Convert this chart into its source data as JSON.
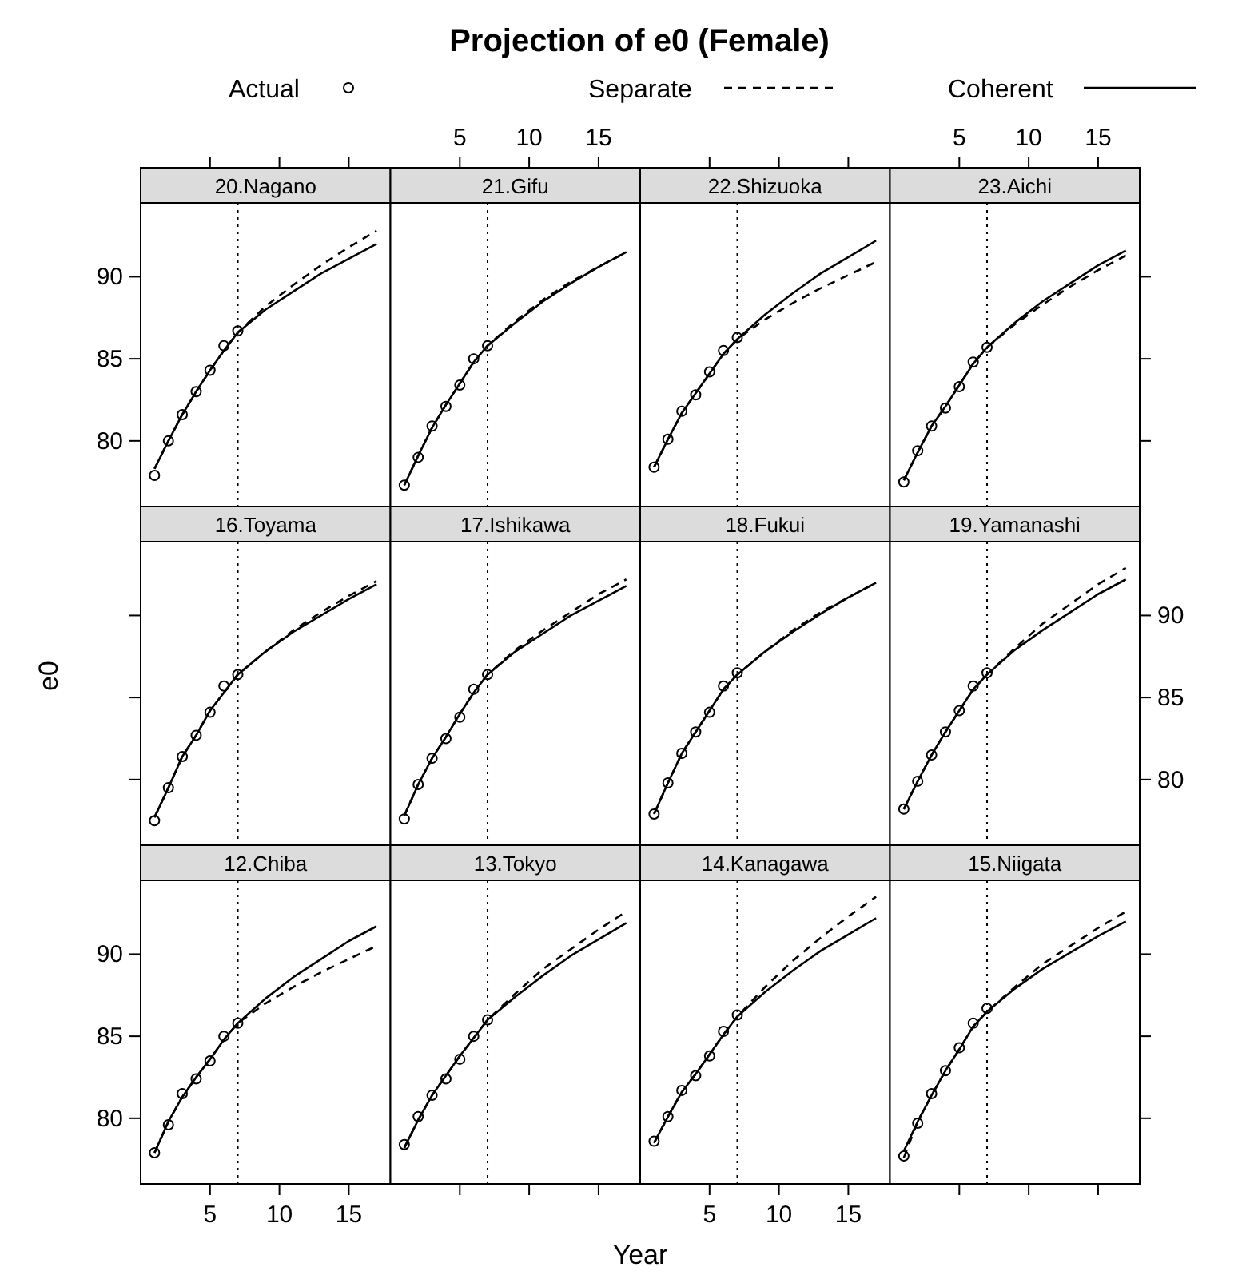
{
  "chart_data": [
    {
      "type": "line",
      "ylabel": "e0",
      "subtitle": "20.Nagano",
      "legend": "top",
      "xlim": [
        0,
        18
      ],
      "xticks": [
        5,
        10,
        15
      ],
      "ylim": [
        76,
        94.5
      ],
      "yticks": [
        80,
        85,
        90
      ],
      "tick_labels": "y",
      "ref_lines": [
        {
          "axis": "x",
          "value": 7,
          "line_style": "dotted",
          "color": "#000000"
        }
      ],
      "series": [
        {
          "name": "Actual",
          "type": "scatter",
          "marker": "circle",
          "color": "#000000",
          "x": [
            1,
            2,
            3,
            4,
            5,
            6,
            7
          ],
          "values": [
            77.9,
            80.0,
            81.6,
            83.0,
            84.3,
            85.8,
            86.7
          ]
        },
        {
          "name": "Separate",
          "type": "line",
          "line_style": "dashed",
          "color": "#000000",
          "x": [
            1,
            2,
            3,
            4,
            5,
            6,
            7,
            9,
            11,
            13,
            15,
            17
          ],
          "values": [
            78.3,
            80.0,
            81.6,
            83.0,
            84.3,
            85.5,
            86.6,
            88.2,
            89.5,
            90.7,
            91.8,
            92.8
          ]
        },
        {
          "name": "Coherent",
          "type": "line",
          "line_style": "solid",
          "color": "#000000",
          "x": [
            1,
            2,
            3,
            4,
            5,
            6,
            7,
            9,
            11,
            13,
            15,
            17
          ],
          "values": [
            78.3,
            80.0,
            81.6,
            83.0,
            84.3,
            85.5,
            86.6,
            88.0,
            89.1,
            90.2,
            91.1,
            92.0
          ]
        }
      ]
    },
    {
      "type": "line",
      "title": "Projection of e0 (Female)",
      "subtitle": "21.Gifu",
      "xlim": [
        0,
        18
      ],
      "xticks": [
        5,
        10,
        15
      ],
      "ylim": [
        76,
        94.5
      ],
      "tick_labels": "x",
      "ref_lines": [
        {
          "axis": "x",
          "value": 7,
          "line_style": "dotted",
          "color": "#000000"
        }
      ],
      "series": [
        {
          "type": "scatter",
          "marker": "circle",
          "color": "#000000",
          "x": [
            1,
            2,
            3,
            4,
            5,
            6,
            7
          ],
          "values": [
            77.3,
            79.0,
            80.9,
            82.1,
            83.4,
            85.0,
            85.8
          ]
        },
        {
          "type": "line",
          "line_style": "dashed",
          "color": "#000000",
          "x": [
            1,
            2,
            3,
            4,
            5,
            6,
            7,
            9,
            11,
            13,
            15,
            17
          ],
          "values": [
            77.3,
            79.1,
            80.8,
            82.2,
            83.5,
            84.8,
            85.8,
            87.3,
            88.6,
            89.7,
            90.6,
            91.5
          ]
        },
        {
          "type": "line",
          "line_style": "solid",
          "color": "#000000",
          "x": [
            1,
            2,
            3,
            4,
            5,
            6,
            7,
            9,
            11,
            13,
            15,
            17
          ],
          "values": [
            77.3,
            79.1,
            80.8,
            82.2,
            83.5,
            84.8,
            85.8,
            87.2,
            88.5,
            89.6,
            90.6,
            91.5
          ]
        }
      ]
    },
    {
      "type": "line",
      "subtitle": "22.Shizuoka",
      "xlim": [
        0,
        18
      ],
      "xticks": [
        5,
        10,
        15
      ],
      "ylim": [
        76,
        94.5
      ],
      "tick_labels": false,
      "ref_lines": [
        {
          "axis": "x",
          "value": 7,
          "line_style": "dotted",
          "color": "#000000"
        }
      ],
      "series": [
        {
          "type": "scatter",
          "marker": "circle",
          "color": "#000000",
          "x": [
            1,
            2,
            3,
            4,
            5,
            6,
            7
          ],
          "values": [
            78.4,
            80.1,
            81.8,
            82.8,
            84.2,
            85.5,
            86.3
          ]
        },
        {
          "type": "line",
          "line_style": "dashed",
          "color": "#000000",
          "x": [
            1,
            2,
            3,
            4,
            5,
            6,
            7,
            9,
            11,
            13,
            15,
            17
          ],
          "values": [
            78.4,
            80.1,
            81.7,
            82.9,
            84.1,
            85.3,
            86.2,
            87.4,
            88.4,
            89.3,
            90.1,
            90.9
          ]
        },
        {
          "type": "line",
          "line_style": "solid",
          "color": "#000000",
          "x": [
            1,
            2,
            3,
            4,
            5,
            6,
            7,
            9,
            11,
            13,
            15,
            17
          ],
          "values": [
            78.4,
            80.1,
            81.7,
            82.9,
            84.1,
            85.3,
            86.2,
            87.7,
            89.0,
            90.2,
            91.2,
            92.2
          ]
        }
      ]
    },
    {
      "type": "line",
      "subtitle": "23.Aichi",
      "xlim": [
        0,
        18
      ],
      "xticks": [
        5,
        10,
        15
      ],
      "ylim": [
        76,
        94.5
      ],
      "yticks": [
        80,
        85,
        90
      ],
      "tick_labels": "x",
      "ref_lines": [
        {
          "axis": "x",
          "value": 7,
          "line_style": "dotted",
          "color": "#000000"
        }
      ],
      "series": [
        {
          "type": "scatter",
          "marker": "circle",
          "color": "#000000",
          "x": [
            1,
            2,
            3,
            4,
            5,
            6,
            7
          ],
          "values": [
            77.5,
            79.4,
            80.9,
            82.0,
            83.3,
            84.8,
            85.7
          ]
        },
        {
          "type": "line",
          "line_style": "dashed",
          "color": "#000000",
          "x": [
            1,
            2,
            3,
            4,
            5,
            6,
            7,
            9,
            11,
            13,
            15,
            17
          ],
          "values": [
            77.6,
            79.3,
            80.9,
            82.1,
            83.4,
            84.7,
            85.7,
            87.1,
            88.3,
            89.4,
            90.4,
            91.3
          ]
        },
        {
          "type": "line",
          "line_style": "solid",
          "color": "#000000",
          "x": [
            1,
            2,
            3,
            4,
            5,
            6,
            7,
            9,
            11,
            13,
            15,
            17
          ],
          "values": [
            77.6,
            79.3,
            80.9,
            82.1,
            83.4,
            84.7,
            85.7,
            87.2,
            88.5,
            89.6,
            90.7,
            91.6
          ]
        }
      ]
    },
    {
      "type": "line",
      "subtitle": "16.Toyama",
      "xlim": [
        0,
        18
      ],
      "ylim": [
        76,
        94.5
      ],
      "yticks": [
        80,
        85,
        90
      ],
      "tick_labels": false,
      "ref_lines": [
        {
          "axis": "x",
          "value": 7,
          "line_style": "dotted",
          "color": "#000000"
        }
      ],
      "series": [
        {
          "type": "scatter",
          "marker": "circle",
          "color": "#000000",
          "x": [
            1,
            2,
            3,
            4,
            5,
            6,
            7
          ],
          "values": [
            77.5,
            79.5,
            81.4,
            82.7,
            84.1,
            85.7,
            86.4
          ]
        },
        {
          "type": "line",
          "line_style": "dashed",
          "color": "#000000",
          "x": [
            1,
            2,
            3,
            4,
            5,
            6,
            7,
            9,
            11,
            13,
            15,
            17
          ],
          "values": [
            77.7,
            79.5,
            81.4,
            82.7,
            84.2,
            85.3,
            86.4,
            87.8,
            89.1,
            90.2,
            91.2,
            92.1
          ]
        },
        {
          "type": "line",
          "line_style": "solid",
          "color": "#000000",
          "x": [
            1,
            2,
            3,
            4,
            5,
            6,
            7,
            9,
            11,
            13,
            15,
            17
          ],
          "values": [
            77.7,
            79.5,
            81.4,
            82.7,
            84.2,
            85.3,
            86.4,
            87.8,
            89.0,
            90.0,
            91.0,
            91.9
          ]
        }
      ]
    },
    {
      "type": "line",
      "subtitle": "17.Ishikawa",
      "xlim": [
        0,
        18
      ],
      "ylim": [
        76,
        94.5
      ],
      "tick_labels": false,
      "ref_lines": [
        {
          "axis": "x",
          "value": 7,
          "line_style": "dotted",
          "color": "#000000"
        }
      ],
      "series": [
        {
          "type": "scatter",
          "marker": "circle",
          "color": "#000000",
          "x": [
            1,
            2,
            3,
            4,
            5,
            6,
            7
          ],
          "values": [
            77.6,
            79.7,
            81.3,
            82.5,
            83.8,
            85.5,
            86.4
          ]
        },
        {
          "type": "line",
          "line_style": "dashed",
          "color": "#000000",
          "x": [
            1,
            2,
            3,
            4,
            5,
            6,
            7,
            9,
            11,
            13,
            15,
            17
          ],
          "values": [
            77.8,
            79.7,
            81.3,
            82.6,
            84.0,
            85.3,
            86.4,
            87.9,
            89.1,
            90.2,
            91.3,
            92.2
          ]
        },
        {
          "type": "line",
          "line_style": "solid",
          "color": "#000000",
          "x": [
            1,
            2,
            3,
            4,
            5,
            6,
            7,
            9,
            11,
            13,
            15,
            17
          ],
          "values": [
            77.8,
            79.7,
            81.3,
            82.6,
            84.0,
            85.3,
            86.4,
            87.8,
            88.9,
            90.0,
            90.9,
            91.8
          ]
        }
      ]
    },
    {
      "type": "line",
      "subtitle": "18.Fukui",
      "xlim": [
        0,
        18
      ],
      "ylim": [
        76,
        94.5
      ],
      "tick_labels": false,
      "ref_lines": [
        {
          "axis": "x",
          "value": 7,
          "line_style": "dotted",
          "color": "#000000"
        }
      ],
      "series": [
        {
          "type": "scatter",
          "marker": "circle",
          "color": "#000000",
          "x": [
            1,
            2,
            3,
            4,
            5,
            6,
            7
          ],
          "values": [
            77.9,
            79.8,
            81.6,
            82.9,
            84.1,
            85.7,
            86.5
          ]
        },
        {
          "type": "line",
          "line_style": "dashed",
          "color": "#000000",
          "x": [
            1,
            2,
            3,
            4,
            5,
            6,
            7,
            9,
            11,
            13,
            15,
            17
          ],
          "values": [
            77.9,
            79.8,
            81.6,
            82.9,
            84.2,
            85.5,
            86.4,
            87.8,
            89.1,
            90.2,
            91.1,
            92.0
          ]
        },
        {
          "type": "line",
          "line_style": "solid",
          "color": "#000000",
          "x": [
            1,
            2,
            3,
            4,
            5,
            6,
            7,
            9,
            11,
            13,
            15,
            17
          ],
          "values": [
            77.9,
            79.8,
            81.6,
            82.9,
            84.2,
            85.5,
            86.4,
            87.8,
            89.0,
            90.1,
            91.1,
            92.0
          ]
        }
      ]
    },
    {
      "type": "line",
      "subtitle": "19.Yamanashi",
      "xlim": [
        0,
        18
      ],
      "ylim": [
        76,
        94.5
      ],
      "yticks": [
        80,
        85,
        90
      ],
      "tick_labels": "y",
      "ref_lines": [
        {
          "axis": "x",
          "value": 7,
          "line_style": "dotted",
          "color": "#000000"
        }
      ],
      "series": [
        {
          "type": "scatter",
          "marker": "circle",
          "color": "#000000",
          "x": [
            1,
            2,
            3,
            4,
            5,
            6,
            7
          ],
          "values": [
            78.2,
            79.9,
            81.5,
            82.9,
            84.2,
            85.7,
            86.5
          ]
        },
        {
          "type": "line",
          "line_style": "dashed",
          "color": "#000000",
          "x": [
            1,
            2,
            3,
            4,
            5,
            6,
            7,
            9,
            11,
            13,
            15,
            17
          ],
          "values": [
            78.2,
            79.9,
            81.5,
            82.9,
            84.2,
            85.5,
            86.4,
            88.0,
            89.5,
            90.7,
            91.9,
            92.9
          ]
        },
        {
          "type": "line",
          "line_style": "solid",
          "color": "#000000",
          "x": [
            1,
            2,
            3,
            4,
            5,
            6,
            7,
            9,
            11,
            13,
            15,
            17
          ],
          "values": [
            78.2,
            79.9,
            81.5,
            82.9,
            84.2,
            85.5,
            86.4,
            87.9,
            89.1,
            90.2,
            91.3,
            92.2
          ]
        }
      ]
    },
    {
      "type": "line",
      "subtitle": "12.Chiba",
      "xlim": [
        0,
        18
      ],
      "xticks": [
        5,
        10,
        15
      ],
      "ylim": [
        76,
        94.5
      ],
      "yticks": [
        80,
        85,
        90
      ],
      "ref_lines": [
        {
          "axis": "x",
          "value": 7,
          "line_style": "dotted",
          "color": "#000000"
        }
      ],
      "series": [
        {
          "type": "scatter",
          "marker": "circle",
          "color": "#000000",
          "x": [
            1,
            2,
            3,
            4,
            5,
            6,
            7
          ],
          "values": [
            77.9,
            79.6,
            81.5,
            82.4,
            83.5,
            85.0,
            85.8
          ]
        },
        {
          "type": "line",
          "line_style": "dashed",
          "color": "#000000",
          "x": [
            1,
            2,
            3,
            4,
            5,
            6,
            7,
            9,
            11,
            13,
            15,
            17
          ],
          "values": [
            77.9,
            79.8,
            81.3,
            82.5,
            83.6,
            84.8,
            85.8,
            87.0,
            88.0,
            88.9,
            89.7,
            90.5
          ]
        },
        {
          "type": "line",
          "line_style": "solid",
          "color": "#000000",
          "x": [
            1,
            2,
            3,
            4,
            5,
            6,
            7,
            9,
            11,
            13,
            15,
            17
          ],
          "values": [
            77.9,
            79.8,
            81.3,
            82.5,
            83.6,
            84.8,
            85.8,
            87.3,
            88.6,
            89.7,
            90.8,
            91.7
          ]
        }
      ]
    },
    {
      "type": "line",
      "xlabel": "Year",
      "subtitle": "13.Tokyo",
      "xlim": [
        0,
        18
      ],
      "xticks": [
        5,
        10,
        15
      ],
      "ylim": [
        76,
        94.5
      ],
      "tick_labels": false,
      "ref_lines": [
        {
          "axis": "x",
          "value": 7,
          "line_style": "dotted",
          "color": "#000000"
        }
      ],
      "series": [
        {
          "type": "scatter",
          "marker": "circle",
          "color": "#000000",
          "x": [
            1,
            2,
            3,
            4,
            5,
            6,
            7
          ],
          "values": [
            78.4,
            80.1,
            81.4,
            82.4,
            83.6,
            85.0,
            86.0
          ]
        },
        {
          "type": "line",
          "line_style": "dashed",
          "color": "#000000",
          "x": [
            1,
            2,
            3,
            4,
            5,
            6,
            7,
            9,
            11,
            13,
            15,
            17
          ],
          "values": [
            78.2,
            79.9,
            81.4,
            82.6,
            83.8,
            84.9,
            86.0,
            87.6,
            89.1,
            90.3,
            91.5,
            92.6
          ]
        },
        {
          "type": "line",
          "line_style": "solid",
          "color": "#000000",
          "x": [
            1,
            2,
            3,
            4,
            5,
            6,
            7,
            9,
            11,
            13,
            15,
            17
          ],
          "values": [
            78.2,
            79.9,
            81.4,
            82.6,
            83.8,
            84.9,
            86.0,
            87.4,
            88.7,
            89.9,
            90.9,
            91.9
          ]
        }
      ]
    },
    {
      "type": "line",
      "subtitle": "14.Kanagawa",
      "xlim": [
        0,
        18
      ],
      "xticks": [
        5,
        10,
        15
      ],
      "ylim": [
        76,
        94.5
      ],
      "tick_labels": "x",
      "ref_lines": [
        {
          "axis": "x",
          "value": 7,
          "line_style": "dotted",
          "color": "#000000"
        }
      ],
      "series": [
        {
          "type": "scatter",
          "marker": "circle",
          "color": "#000000",
          "x": [
            1,
            2,
            3,
            4,
            5,
            6,
            7
          ],
          "values": [
            78.6,
            80.1,
            81.7,
            82.6,
            83.8,
            85.3,
            86.3
          ]
        },
        {
          "type": "line",
          "line_style": "dashed",
          "color": "#000000",
          "x": [
            1,
            2,
            3,
            4,
            5,
            6,
            7,
            9,
            11,
            13,
            15,
            17
          ],
          "values": [
            78.5,
            80.1,
            81.6,
            82.7,
            83.9,
            85.1,
            86.2,
            88.0,
            89.6,
            91.0,
            92.3,
            93.5
          ]
        },
        {
          "type": "line",
          "line_style": "solid",
          "color": "#000000",
          "x": [
            1,
            2,
            3,
            4,
            5,
            6,
            7,
            9,
            11,
            13,
            15,
            17
          ],
          "values": [
            78.5,
            80.1,
            81.6,
            82.7,
            83.9,
            85.1,
            86.2,
            87.7,
            89.0,
            90.2,
            91.2,
            92.2
          ]
        }
      ]
    },
    {
      "type": "line",
      "subtitle": "15.Niigata",
      "xlim": [
        0,
        18
      ],
      "xticks": [
        5,
        10,
        15
      ],
      "ylim": [
        76,
        94.5
      ],
      "yticks": [
        80,
        85,
        90
      ],
      "tick_labels": false,
      "ref_lines": [
        {
          "axis": "x",
          "value": 7,
          "line_style": "dotted",
          "color": "#000000"
        }
      ],
      "series": [
        {
          "type": "scatter",
          "marker": "circle",
          "color": "#000000",
          "x": [
            1,
            2,
            3,
            4,
            5,
            6,
            7
          ],
          "values": [
            77.7,
            79.7,
            81.5,
            82.9,
            84.3,
            85.8,
            86.7
          ]
        },
        {
          "type": "line",
          "line_style": "dashed",
          "color": "#000000",
          "x": [
            1,
            2,
            3,
            4,
            5,
            6,
            7,
            9,
            11,
            13,
            15,
            17
          ],
          "values": [
            77.6,
            79.8,
            81.4,
            82.9,
            84.2,
            85.6,
            86.5,
            88.0,
            89.4,
            90.5,
            91.6,
            92.6
          ]
        },
        {
          "type": "line",
          "line_style": "solid",
          "color": "#000000",
          "x": [
            1,
            2,
            3,
            4,
            5,
            6,
            7,
            9,
            11,
            13,
            15,
            17
          ],
          "values": [
            78.0,
            79.8,
            81.4,
            82.9,
            84.2,
            85.6,
            86.5,
            87.9,
            89.1,
            90.1,
            91.1,
            92.0
          ]
        }
      ]
    }
  ]
}
